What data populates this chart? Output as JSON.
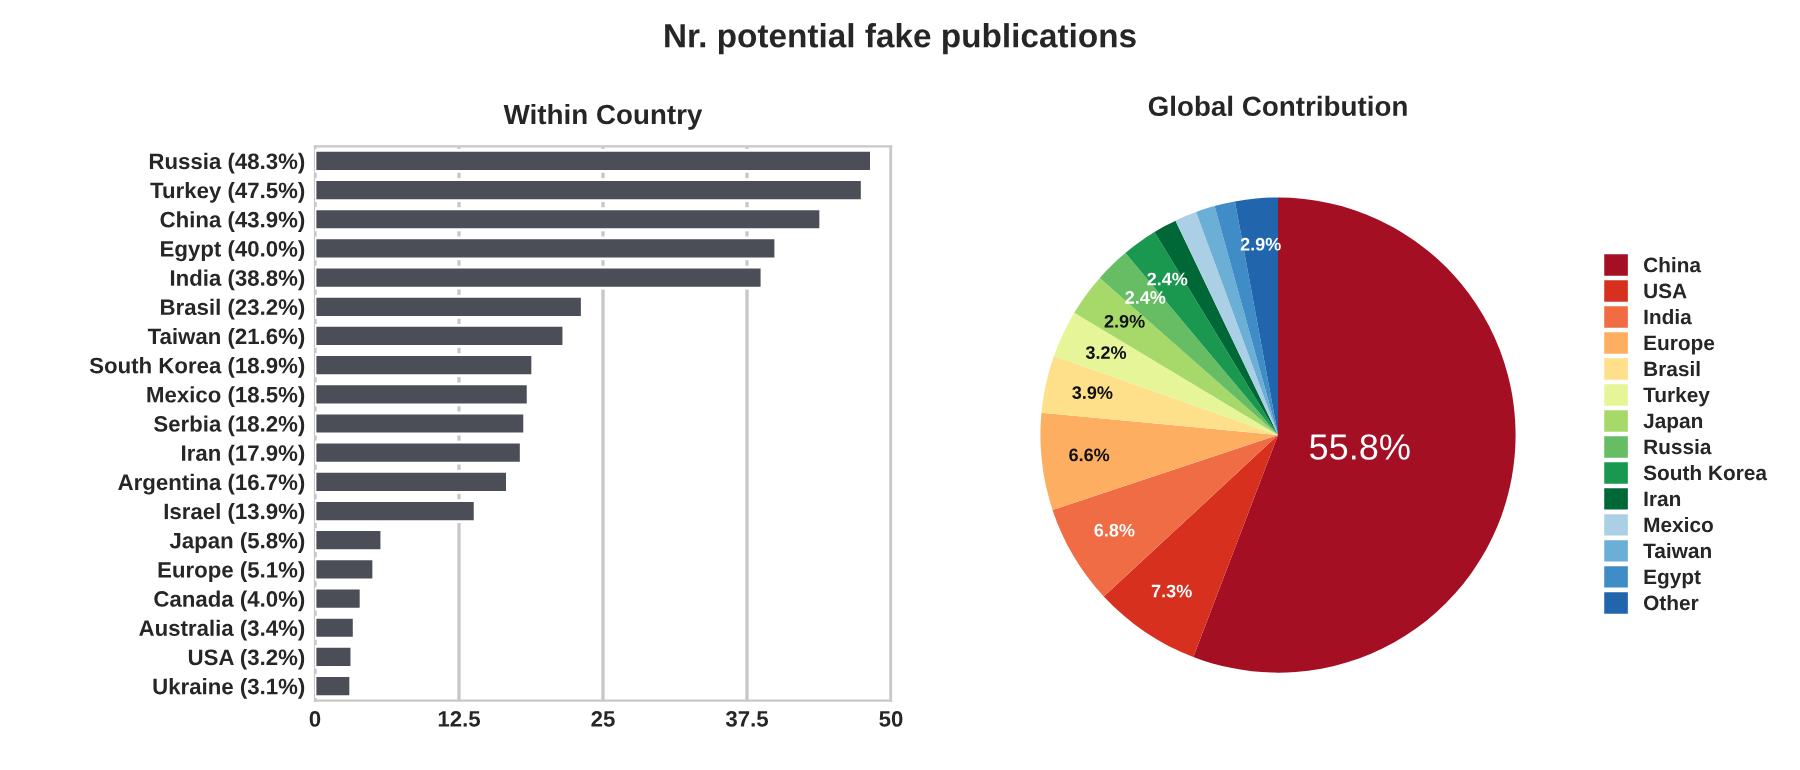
{
  "chart_data": [
    {
      "type": "bar",
      "title": "Nr. potential fake publications",
      "subtitle": "Within Country",
      "orientation": "horizontal",
      "categories": [
        "Russia (48.3%)",
        "Turkey (47.5%)",
        "China (43.9%)",
        "Egypt (40.0%)",
        "India (38.8%)",
        "Brasil (23.2%)",
        "Taiwan (21.6%)",
        "South Korea (18.9%)",
        "Mexico (18.5%)",
        "Serbia (18.2%)",
        "Iran (17.9%)",
        "Argentina (16.7%)",
        "Israel (13.9%)",
        "Japan (5.8%)",
        "Europe (5.1%)",
        "Canada (4.0%)",
        "Australia (3.4%)",
        "USA (3.2%)",
        "Ukraine (3.1%)"
      ],
      "values": [
        48.3,
        47.5,
        43.9,
        40.0,
        38.8,
        23.2,
        21.6,
        18.9,
        18.5,
        18.2,
        17.9,
        16.7,
        13.9,
        5.8,
        5.1,
        4.0,
        3.4,
        3.2,
        3.1
      ],
      "color": "#4b4e56",
      "xlim": [
        0,
        50
      ],
      "xticks": [
        0,
        {
          "value": 12.5,
          "label": "12.5"
        },
        25,
        {
          "value": 37.5,
          "label": "37.5"
        },
        50
      ],
      "grid": "x"
    },
    {
      "type": "pie",
      "title": "Global Contribution",
      "categories": [
        "China",
        "USA",
        "India",
        "Europe",
        "Brasil",
        "Turkey",
        "Japan",
        "Russia",
        "South Korea",
        "Iran",
        "Mexico",
        "Taiwan",
        "Egypt",
        "Other"
      ],
      "values": [
        55.8,
        7.3,
        6.8,
        6.6,
        3.9,
        3.2,
        2.9,
        2.4,
        2.4,
        1.6,
        1.5,
        1.3,
        1.4,
        2.9
      ],
      "value_labels": [
        "55.8%",
        "7.3%",
        "6.8%",
        "6.6%",
        "3.9%",
        "3.2%",
        "2.9%",
        "2.4%",
        "2.4%",
        null,
        null,
        null,
        null,
        "2.9%"
      ],
      "colors": [
        "#a50f24",
        "#d7301f",
        "#ef6c45",
        "#fdae61",
        "#fee08b",
        "#e6f598",
        "#a6d96a",
        "#66bd63",
        "#1a9850",
        "#006837",
        "#abd0e6",
        "#6baed6",
        "#3f8cc6",
        "#2166ac"
      ],
      "legend": "right"
    }
  ]
}
